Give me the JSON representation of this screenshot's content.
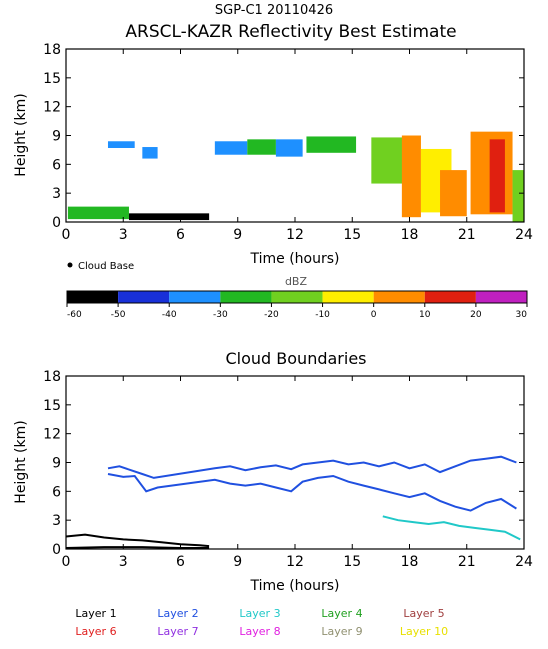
{
  "header": {
    "site_date": "SGP-C1 20110426",
    "title": "ARSCL-KAZR Reflectivity Best Estimate"
  },
  "chart_data": [
    {
      "type": "heatmap",
      "title": "ARSCL-KAZR Reflectivity Best Estimate",
      "xlabel": "Time (hours)",
      "ylabel": "Height (km)",
      "xlim": [
        0,
        24
      ],
      "ylim": [
        0,
        18
      ],
      "xticks": [
        "0",
        "3",
        "6",
        "9",
        "12",
        "15",
        "18",
        "21",
        "24"
      ],
      "yticks": [
        "0",
        "3",
        "6",
        "9",
        "12",
        "15",
        "18"
      ],
      "legend": "Cloud Base",
      "colorbar": {
        "label": "dBZ",
        "ticks": [
          "-60",
          "-50",
          "-40",
          "-30",
          "-20",
          "-10",
          "0",
          "10",
          "20",
          "30"
        ],
        "bins": [
          {
            "from": -60,
            "to": -50,
            "color": "#000000"
          },
          {
            "from": -50,
            "to": -40,
            "color": "#1830d8"
          },
          {
            "from": -40,
            "to": -30,
            "color": "#1e90ff"
          },
          {
            "from": -30,
            "to": -20,
            "color": "#22b822"
          },
          {
            "from": -20,
            "to": -10,
            "color": "#70d020"
          },
          {
            "from": -10,
            "to": 0,
            "color": "#ffee00"
          },
          {
            "from": 0,
            "to": 10,
            "color": "#ff8c00"
          },
          {
            "from": 10,
            "to": 20,
            "color": "#e02010"
          },
          {
            "from": 20,
            "to": 30,
            "color": "#c020c0"
          }
        ]
      },
      "cells": [
        {
          "t0": 0.1,
          "t1": 3.3,
          "h0": 0.3,
          "h1": 1.6,
          "dbz": -25
        },
        {
          "t0": 3.3,
          "t1": 7.5,
          "h0": 0.2,
          "h1": 0.9,
          "dbz": -55
        },
        {
          "t0": 2.2,
          "t1": 3.6,
          "h0": 7.7,
          "h1": 8.4,
          "dbz": -40
        },
        {
          "t0": 4.0,
          "t1": 4.8,
          "h0": 6.6,
          "h1": 7.8,
          "dbz": -40
        },
        {
          "t0": 7.8,
          "t1": 9.5,
          "h0": 7.0,
          "h1": 8.4,
          "dbz": -35
        },
        {
          "t0": 9.5,
          "t1": 11.0,
          "h0": 7.0,
          "h1": 8.6,
          "dbz": -25
        },
        {
          "t0": 11.0,
          "t1": 12.4,
          "h0": 6.8,
          "h1": 8.6,
          "dbz": -35
        },
        {
          "t0": 12.6,
          "t1": 15.2,
          "h0": 7.2,
          "h1": 8.9,
          "dbz": -25
        },
        {
          "t0": 16.0,
          "t1": 18.2,
          "h0": 4.0,
          "h1": 8.8,
          "dbz": -15
        },
        {
          "t0": 17.6,
          "t1": 18.6,
          "h0": 0.5,
          "h1": 9.0,
          "dbz": 5
        },
        {
          "t0": 18.6,
          "t1": 20.2,
          "h0": 1.0,
          "h1": 7.6,
          "dbz": -5
        },
        {
          "t0": 19.6,
          "t1": 21.0,
          "h0": 0.6,
          "h1": 5.4,
          "dbz": 5
        },
        {
          "t0": 21.2,
          "t1": 23.4,
          "h0": 0.8,
          "h1": 9.4,
          "dbz": 5
        },
        {
          "t0": 22.2,
          "t1": 23.0,
          "h0": 1.0,
          "h1": 8.6,
          "dbz": 15
        },
        {
          "t0": 23.4,
          "t1": 24.0,
          "h0": 0.0,
          "h1": 5.4,
          "dbz": -15
        }
      ]
    },
    {
      "type": "scatter",
      "title": "Cloud Boundaries",
      "xlabel": "Time (hours)",
      "ylabel": "Height (km)",
      "xlim": [
        0,
        24
      ],
      "ylim": [
        0,
        18
      ],
      "xticks": [
        "0",
        "3",
        "6",
        "9",
        "12",
        "15",
        "18",
        "21",
        "24"
      ],
      "yticks": [
        "0",
        "3",
        "6",
        "9",
        "12",
        "15",
        "18"
      ],
      "legend": [
        {
          "name": "Layer 1",
          "color": "#000000"
        },
        {
          "name": "Layer 2",
          "color": "#2050e0"
        },
        {
          "name": "Layer 3",
          "color": "#20c8c8"
        },
        {
          "name": "Layer 4",
          "color": "#20a020"
        },
        {
          "name": "Layer 5",
          "color": "#a04040"
        },
        {
          "name": "Layer 6",
          "color": "#e02020"
        },
        {
          "name": "Layer 7",
          "color": "#9030e0"
        },
        {
          "name": "Layer 8",
          "color": "#e020e0"
        },
        {
          "name": "Layer 9",
          "color": "#909070"
        },
        {
          "name": "Layer 10",
          "color": "#e8e000"
        }
      ],
      "series": [
        {
          "name": "Layer 1",
          "boundary": "top",
          "points": [
            [
              0.0,
              1.3
            ],
            [
              1.0,
              1.5
            ],
            [
              2.0,
              1.2
            ],
            [
              3.0,
              1.0
            ],
            [
              4.0,
              0.9
            ],
            [
              5.0,
              0.7
            ],
            [
              6.0,
              0.5
            ],
            [
              7.0,
              0.4
            ],
            [
              7.5,
              0.3
            ]
          ]
        },
        {
          "name": "Layer 1",
          "boundary": "base",
          "points": [
            [
              0.0,
              0.1
            ],
            [
              2.0,
              0.2
            ],
            [
              4.0,
              0.2
            ],
            [
              6.0,
              0.1
            ],
            [
              7.5,
              0.1
            ]
          ]
        },
        {
          "name": "Layer 2",
          "boundary": "top",
          "points": [
            [
              2.2,
              8.4
            ],
            [
              2.8,
              8.6
            ],
            [
              3.4,
              8.2
            ],
            [
              4.0,
              7.8
            ],
            [
              4.6,
              7.4
            ],
            [
              7.8,
              8.4
            ],
            [
              8.6,
              8.6
            ],
            [
              9.4,
              8.2
            ],
            [
              10.2,
              8.5
            ],
            [
              11.0,
              8.7
            ],
            [
              11.8,
              8.3
            ],
            [
              12.4,
              8.8
            ],
            [
              13.2,
              9.0
            ],
            [
              14.0,
              9.2
            ],
            [
              14.8,
              8.8
            ],
            [
              15.6,
              9.0
            ],
            [
              16.4,
              8.6
            ],
            [
              17.2,
              9.0
            ],
            [
              18.0,
              8.4
            ],
            [
              18.8,
              8.8
            ],
            [
              19.6,
              8.0
            ],
            [
              20.4,
              8.6
            ],
            [
              21.2,
              9.2
            ],
            [
              22.0,
              9.4
            ],
            [
              22.8,
              9.6
            ],
            [
              23.6,
              9.0
            ]
          ]
        },
        {
          "name": "Layer 2",
          "boundary": "base",
          "points": [
            [
              2.2,
              7.8
            ],
            [
              3.0,
              7.5
            ],
            [
              3.6,
              7.6
            ],
            [
              4.2,
              6.0
            ],
            [
              4.8,
              6.4
            ],
            [
              7.8,
              7.2
            ],
            [
              8.6,
              6.8
            ],
            [
              9.4,
              6.6
            ],
            [
              10.2,
              6.8
            ],
            [
              11.0,
              6.4
            ],
            [
              11.8,
              6.0
            ],
            [
              12.4,
              7.0
            ],
            [
              13.2,
              7.4
            ],
            [
              14.0,
              7.6
            ],
            [
              14.8,
              7.0
            ],
            [
              15.6,
              6.6
            ],
            [
              16.4,
              6.2
            ],
            [
              17.2,
              5.8
            ],
            [
              18.0,
              5.4
            ],
            [
              18.8,
              5.8
            ],
            [
              19.6,
              5.0
            ],
            [
              20.4,
              4.4
            ],
            [
              21.2,
              4.0
            ],
            [
              22.0,
              4.8
            ],
            [
              22.8,
              5.2
            ],
            [
              23.6,
              4.2
            ]
          ]
        },
        {
          "name": "Layer 3",
          "boundary": "base",
          "points": [
            [
              16.6,
              3.4
            ],
            [
              17.4,
              3.0
            ],
            [
              18.2,
              2.8
            ],
            [
              19.0,
              2.6
            ],
            [
              19.8,
              2.8
            ],
            [
              20.6,
              2.4
            ],
            [
              21.4,
              2.2
            ],
            [
              22.2,
              2.0
            ],
            [
              23.0,
              1.8
            ],
            [
              23.8,
              1.0
            ]
          ]
        }
      ]
    }
  ]
}
